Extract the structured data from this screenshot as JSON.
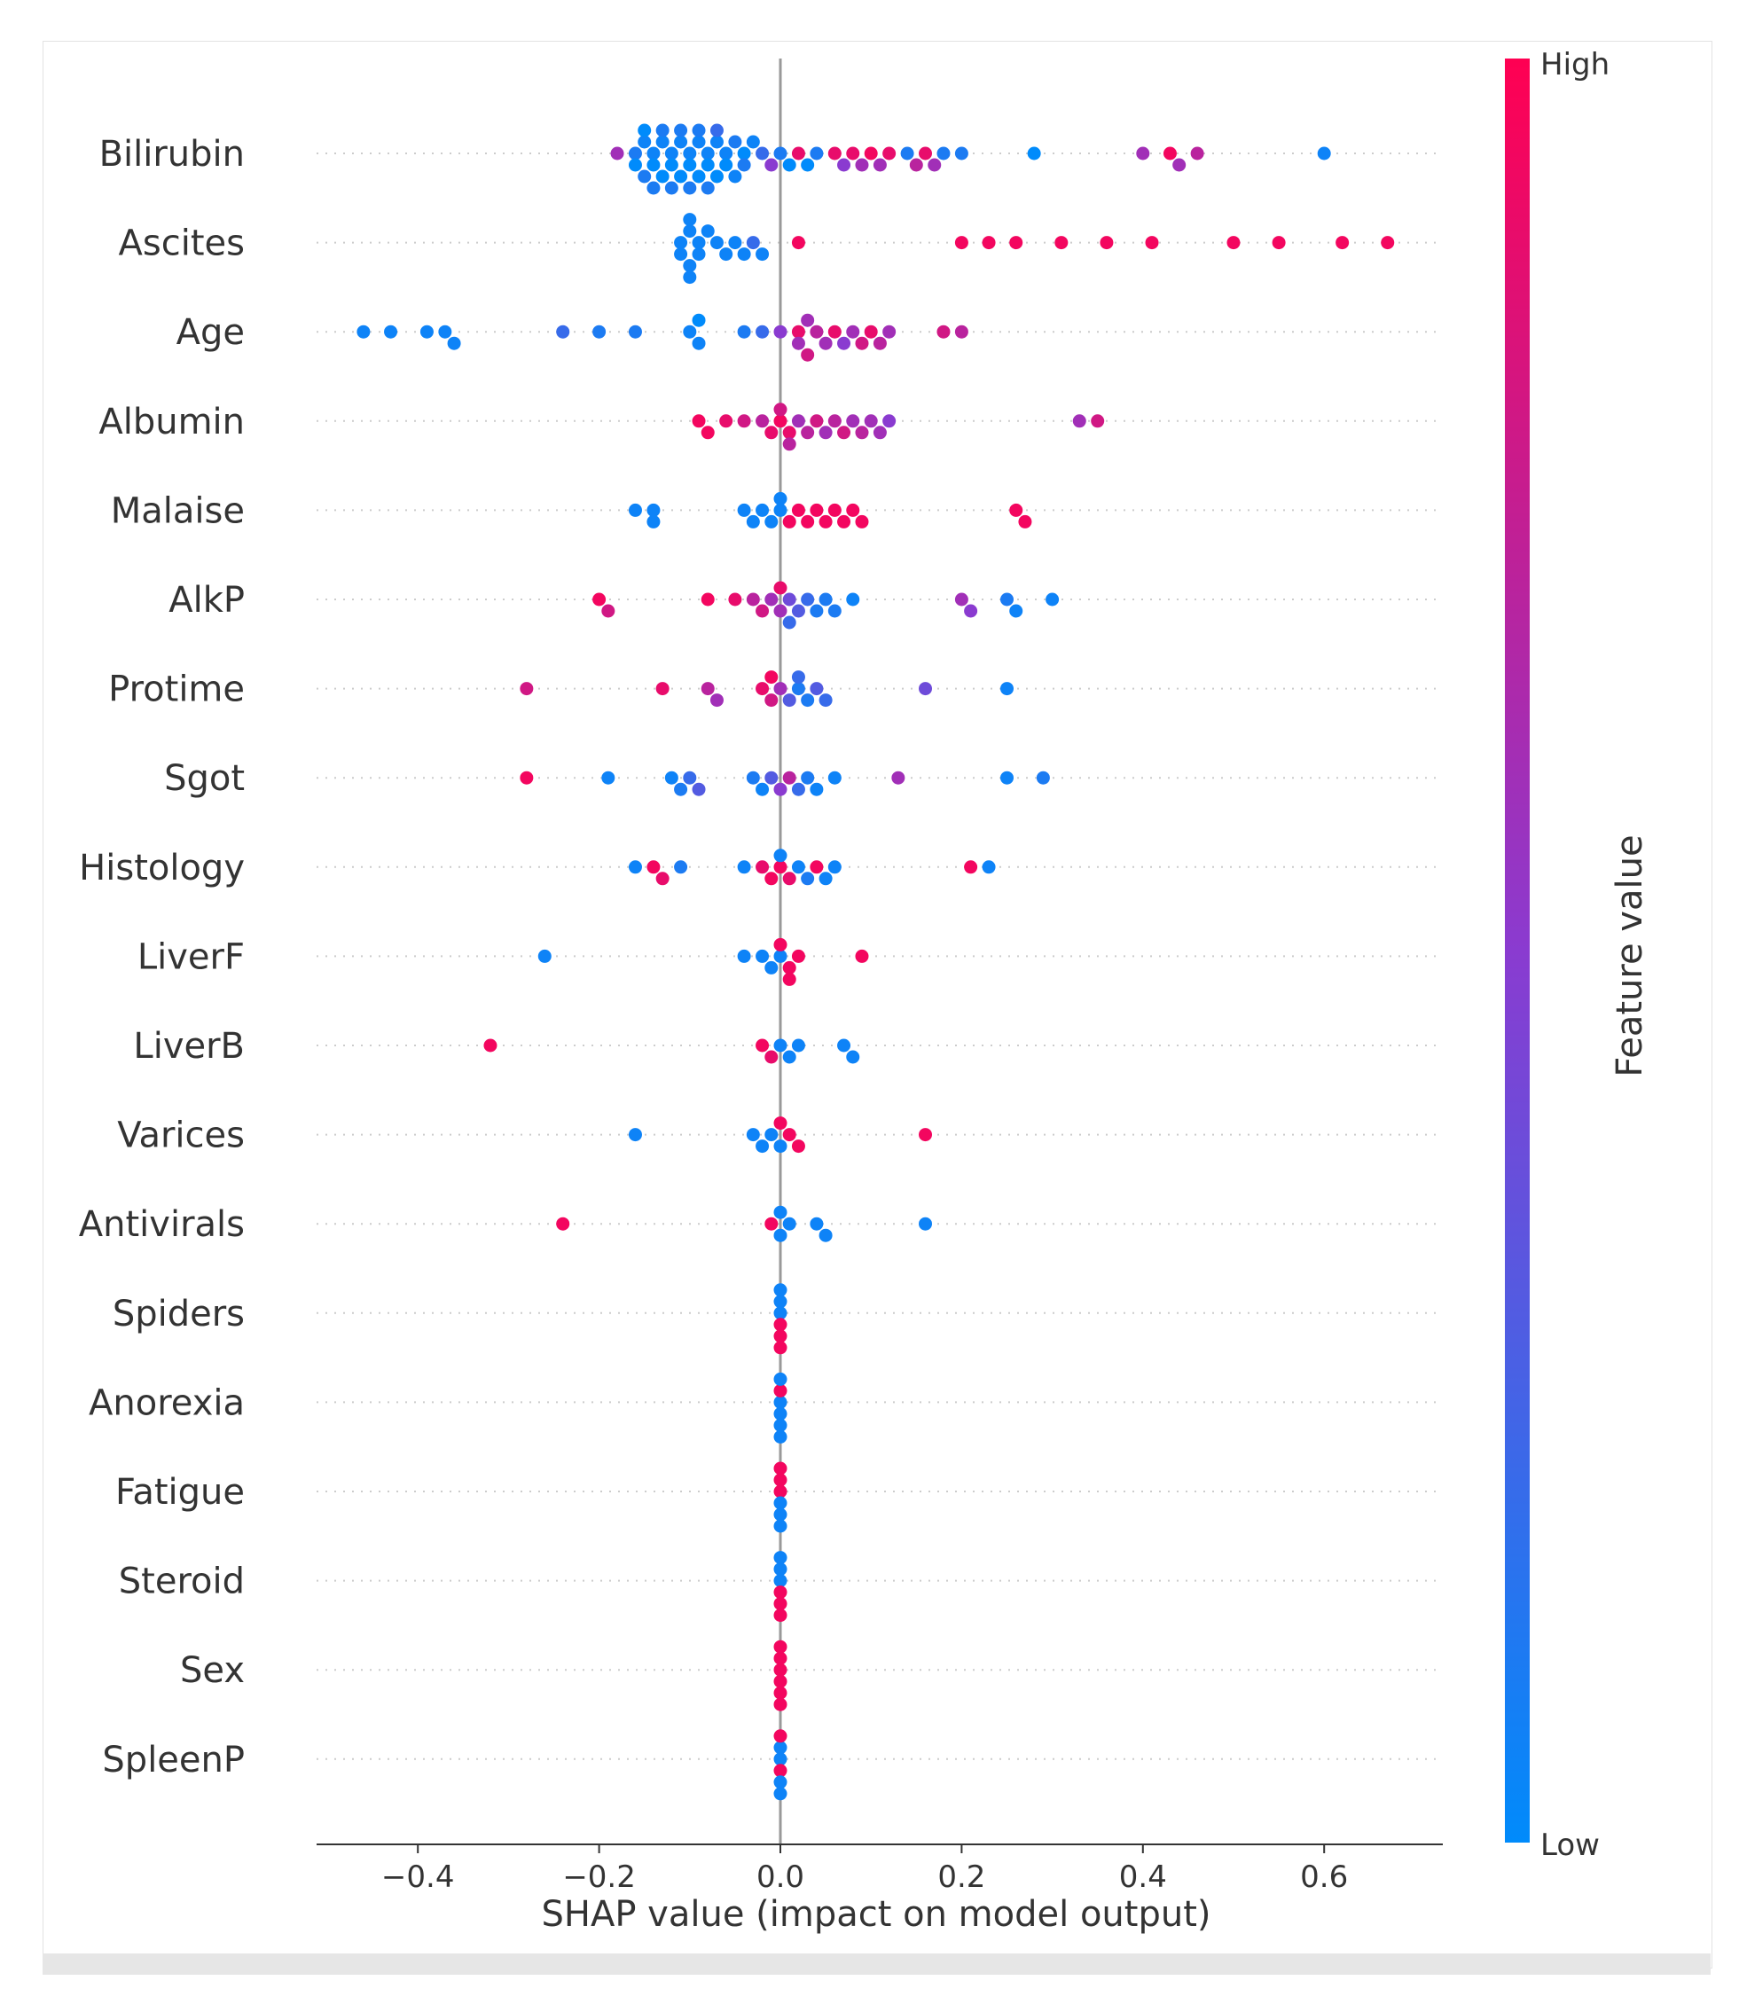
{
  "chart_data": {
    "type": "scatter",
    "subtype": "shap-beeswarm",
    "title": "",
    "xlabel": "SHAP value (impact on model output)",
    "ylabel": "",
    "xlim": [
      -0.52,
      0.72
    ],
    "xticks": [
      -0.4,
      -0.2,
      0.0,
      0.2,
      0.4,
      0.6
    ],
    "xtick_labels": [
      "−0.4",
      "−0.2",
      "0.0",
      "0.2",
      "0.4",
      "0.6"
    ],
    "features": [
      "Bilirubin",
      "Ascites",
      "Age",
      "Albumin",
      "Malaise",
      "AlkP",
      "Protime",
      "Sgot",
      "Histology",
      "LiverF",
      "LiverB",
      "Varices",
      "Antivirals",
      "Spiders",
      "Anorexia",
      "Fatigue",
      "Steroid",
      "Sex",
      "SpleenP"
    ],
    "colorbar": {
      "label": "Feature value",
      "high_label": "High",
      "low_label": "Low",
      "high_color": "#ff0052",
      "low_color": "#008bfb"
    },
    "series": [
      {
        "feature": "Bilirubin",
        "x": [
          -0.18,
          -0.16,
          -0.16,
          -0.15,
          -0.15,
          -0.15,
          -0.14,
          -0.14,
          -0.14,
          -0.13,
          -0.13,
          -0.13,
          -0.12,
          -0.12,
          -0.12,
          -0.11,
          -0.11,
          -0.11,
          -0.1,
          -0.1,
          -0.1,
          -0.09,
          -0.09,
          -0.09,
          -0.08,
          -0.08,
          -0.08,
          -0.07,
          -0.07,
          -0.07,
          -0.06,
          -0.06,
          -0.05,
          -0.05,
          -0.04,
          -0.04,
          -0.03,
          -0.02,
          -0.01,
          0.0,
          0.01,
          0.02,
          0.03,
          0.04,
          0.06,
          0.07,
          0.08,
          0.09,
          0.1,
          0.11,
          0.12,
          0.14,
          0.15,
          0.16,
          0.17,
          0.18,
          0.2,
          0.28,
          0.4,
          0.43,
          0.44,
          0.46,
          0.6
        ],
        "f": [
          0.6,
          0.1,
          0.0,
          0.05,
          0.1,
          0.0,
          0.05,
          0.0,
          0.1,
          0.05,
          0.0,
          0.1,
          0.05,
          0.0,
          0.1,
          0.05,
          0.0,
          0.1,
          0.05,
          0.0,
          0.1,
          0.05,
          0.0,
          0.1,
          0.05,
          0.0,
          0.1,
          0.05,
          0.0,
          0.2,
          0.05,
          0.0,
          0.1,
          0.05,
          0.0,
          0.1,
          0.05,
          0.2,
          0.5,
          0.1,
          0.0,
          0.9,
          0.0,
          0.1,
          0.9,
          0.5,
          0.9,
          0.6,
          0.95,
          0.6,
          0.9,
          0.1,
          0.7,
          0.9,
          0.6,
          0.1,
          0.1,
          0.0,
          0.6,
          0.95,
          0.6,
          0.7,
          0.05
        ]
      },
      {
        "feature": "Ascites",
        "x": [
          -0.11,
          -0.11,
          -0.1,
          -0.1,
          -0.1,
          -0.1,
          -0.09,
          -0.09,
          -0.08,
          -0.07,
          -0.06,
          -0.05,
          -0.04,
          -0.03,
          -0.02,
          0.02,
          0.2,
          0.23,
          0.26,
          0.31,
          0.36,
          0.41,
          0.5,
          0.55,
          0.62,
          0.67
        ],
        "f": [
          0.05,
          0.05,
          0.05,
          0.05,
          0.05,
          0.05,
          0.05,
          0.05,
          0.05,
          0.05,
          0.05,
          0.05,
          0.05,
          0.2,
          0.05,
          0.95,
          0.95,
          0.95,
          0.95,
          0.95,
          0.95,
          0.95,
          0.95,
          0.95,
          0.95,
          0.95
        ]
      },
      {
        "feature": "Age",
        "x": [
          -0.46,
          -0.43,
          -0.39,
          -0.37,
          -0.36,
          -0.24,
          -0.2,
          -0.16,
          -0.1,
          -0.09,
          -0.09,
          -0.04,
          -0.02,
          0.0,
          0.02,
          0.02,
          0.03,
          0.03,
          0.04,
          0.05,
          0.06,
          0.07,
          0.08,
          0.09,
          0.1,
          0.11,
          0.12,
          0.18,
          0.2
        ],
        "f": [
          0.05,
          0.05,
          0.05,
          0.05,
          0.05,
          0.2,
          0.1,
          0.1,
          0.05,
          0.05,
          0.0,
          0.1,
          0.2,
          0.5,
          0.9,
          0.6,
          0.6,
          0.8,
          0.7,
          0.6,
          0.9,
          0.5,
          0.6,
          0.8,
          0.9,
          0.7,
          0.6,
          0.8,
          0.7
        ]
      },
      {
        "feature": "Albumin",
        "x": [
          -0.09,
          -0.08,
          -0.06,
          -0.04,
          -0.02,
          -0.01,
          0.0,
          0.0,
          0.01,
          0.01,
          0.02,
          0.03,
          0.04,
          0.05,
          0.06,
          0.07,
          0.08,
          0.09,
          0.1,
          0.11,
          0.12,
          0.33,
          0.35
        ],
        "f": [
          0.95,
          0.95,
          0.9,
          0.8,
          0.7,
          0.9,
          0.95,
          0.8,
          0.9,
          0.7,
          0.6,
          0.7,
          0.8,
          0.6,
          0.7,
          0.8,
          0.6,
          0.7,
          0.6,
          0.6,
          0.5,
          0.6,
          0.8
        ]
      },
      {
        "feature": "Malaise",
        "x": [
          -0.16,
          -0.14,
          -0.14,
          -0.04,
          -0.03,
          -0.02,
          -0.01,
          0.0,
          0.0,
          0.01,
          0.02,
          0.03,
          0.04,
          0.05,
          0.06,
          0.07,
          0.08,
          0.09,
          0.26,
          0.27
        ],
        "f": [
          0.05,
          0.05,
          0.05,
          0.05,
          0.05,
          0.05,
          0.05,
          0.05,
          0.05,
          0.95,
          0.95,
          0.95,
          0.95,
          0.95,
          0.95,
          0.95,
          0.95,
          0.95,
          0.95,
          0.95
        ]
      },
      {
        "feature": "AlkP",
        "x": [
          -0.2,
          -0.19,
          -0.08,
          -0.05,
          -0.03,
          -0.02,
          -0.01,
          0.0,
          0.0,
          0.01,
          0.01,
          0.02,
          0.03,
          0.04,
          0.05,
          0.06,
          0.08,
          0.2,
          0.21,
          0.25,
          0.26,
          0.3
        ],
        "f": [
          0.95,
          0.8,
          0.95,
          0.9,
          0.7,
          0.8,
          0.6,
          0.6,
          0.9,
          0.4,
          0.2,
          0.3,
          0.2,
          0.1,
          0.1,
          0.1,
          0.05,
          0.6,
          0.5,
          0.1,
          0.05,
          0.05
        ]
      },
      {
        "feature": "Protime",
        "x": [
          -0.28,
          -0.13,
          -0.08,
          -0.07,
          -0.02,
          -0.01,
          -0.01,
          0.0,
          0.01,
          0.02,
          0.02,
          0.03,
          0.04,
          0.05,
          0.16,
          0.25
        ],
        "f": [
          0.8,
          0.9,
          0.7,
          0.6,
          0.9,
          0.8,
          0.95,
          0.6,
          0.3,
          0.1,
          0.2,
          0.1,
          0.3,
          0.2,
          0.4,
          0.05
        ]
      },
      {
        "feature": "Sgot",
        "x": [
          -0.28,
          -0.19,
          -0.12,
          -0.11,
          -0.1,
          -0.09,
          -0.03,
          -0.02,
          -0.01,
          0.0,
          0.01,
          0.02,
          0.03,
          0.04,
          0.06,
          0.13,
          0.25,
          0.29
        ],
        "f": [
          0.95,
          0.05,
          0.05,
          0.1,
          0.2,
          0.3,
          0.1,
          0.05,
          0.3,
          0.5,
          0.7,
          0.2,
          0.1,
          0.05,
          0.05,
          0.6,
          0.05,
          0.1
        ]
      },
      {
        "feature": "Histology",
        "x": [
          -0.16,
          -0.14,
          -0.13,
          -0.11,
          -0.04,
          -0.02,
          -0.01,
          0.0,
          0.0,
          0.01,
          0.02,
          0.03,
          0.04,
          0.05,
          0.06,
          0.21,
          0.23
        ],
        "f": [
          0.05,
          0.95,
          0.9,
          0.1,
          0.05,
          0.9,
          0.95,
          0.95,
          0.05,
          0.9,
          0.05,
          0.1,
          0.95,
          0.05,
          0.05,
          0.95,
          0.05
        ]
      },
      {
        "feature": "LiverF",
        "x": [
          -0.26,
          -0.04,
          -0.02,
          -0.01,
          0.0,
          0.0,
          0.01,
          0.01,
          0.02,
          0.09
        ],
        "f": [
          0.05,
          0.05,
          0.05,
          0.05,
          0.05,
          0.95,
          0.95,
          0.95,
          0.95,
          0.95
        ]
      },
      {
        "feature": "LiverB",
        "x": [
          -0.32,
          -0.02,
          -0.01,
          0.0,
          0.01,
          0.02,
          0.07,
          0.08
        ],
        "f": [
          0.95,
          0.95,
          0.9,
          0.05,
          0.05,
          0.05,
          0.05,
          0.05
        ]
      },
      {
        "feature": "Varices",
        "x": [
          -0.16,
          -0.03,
          -0.02,
          -0.01,
          0.0,
          0.0,
          0.01,
          0.02,
          0.16
        ],
        "f": [
          0.05,
          0.05,
          0.05,
          0.05,
          0.05,
          0.95,
          0.95,
          0.95,
          0.95
        ]
      },
      {
        "feature": "Antivirals",
        "x": [
          -0.24,
          -0.01,
          0.0,
          0.0,
          0.01,
          0.04,
          0.05,
          0.16
        ],
        "f": [
          0.95,
          0.95,
          0.05,
          0.05,
          0.05,
          0.05,
          0.05,
          0.05
        ]
      },
      {
        "feature": "Spiders",
        "x": [
          0.0,
          0.0,
          0.0,
          0.0,
          0.0,
          0.0
        ],
        "f": [
          0.05,
          0.95,
          0.05,
          0.95,
          0.05,
          0.95
        ]
      },
      {
        "feature": "Anorexia",
        "x": [
          0.0,
          0.0,
          0.0,
          0.0,
          0.0,
          0.0
        ],
        "f": [
          0.05,
          0.05,
          0.95,
          0.05,
          0.05,
          0.05
        ]
      },
      {
        "feature": "Fatigue",
        "x": [
          0.0,
          0.0,
          0.0,
          0.0,
          0.0,
          0.0
        ],
        "f": [
          0.95,
          0.05,
          0.95,
          0.05,
          0.95,
          0.05
        ]
      },
      {
        "feature": "Steroid",
        "x": [
          0.0,
          0.0,
          0.0,
          0.0,
          0.0,
          0.0
        ],
        "f": [
          0.05,
          0.95,
          0.05,
          0.95,
          0.05,
          0.95
        ]
      },
      {
        "feature": "Sex",
        "x": [
          0.0,
          0.0,
          0.0,
          0.0,
          0.0,
          0.0
        ],
        "f": [
          0.95,
          0.95,
          0.95,
          0.95,
          0.95,
          0.95
        ]
      },
      {
        "feature": "SpleenP",
        "x": [
          0.0,
          0.0,
          0.0,
          0.0,
          0.0,
          0.0
        ],
        "f": [
          0.05,
          0.95,
          0.05,
          0.05,
          0.95,
          0.05
        ]
      }
    ]
  }
}
